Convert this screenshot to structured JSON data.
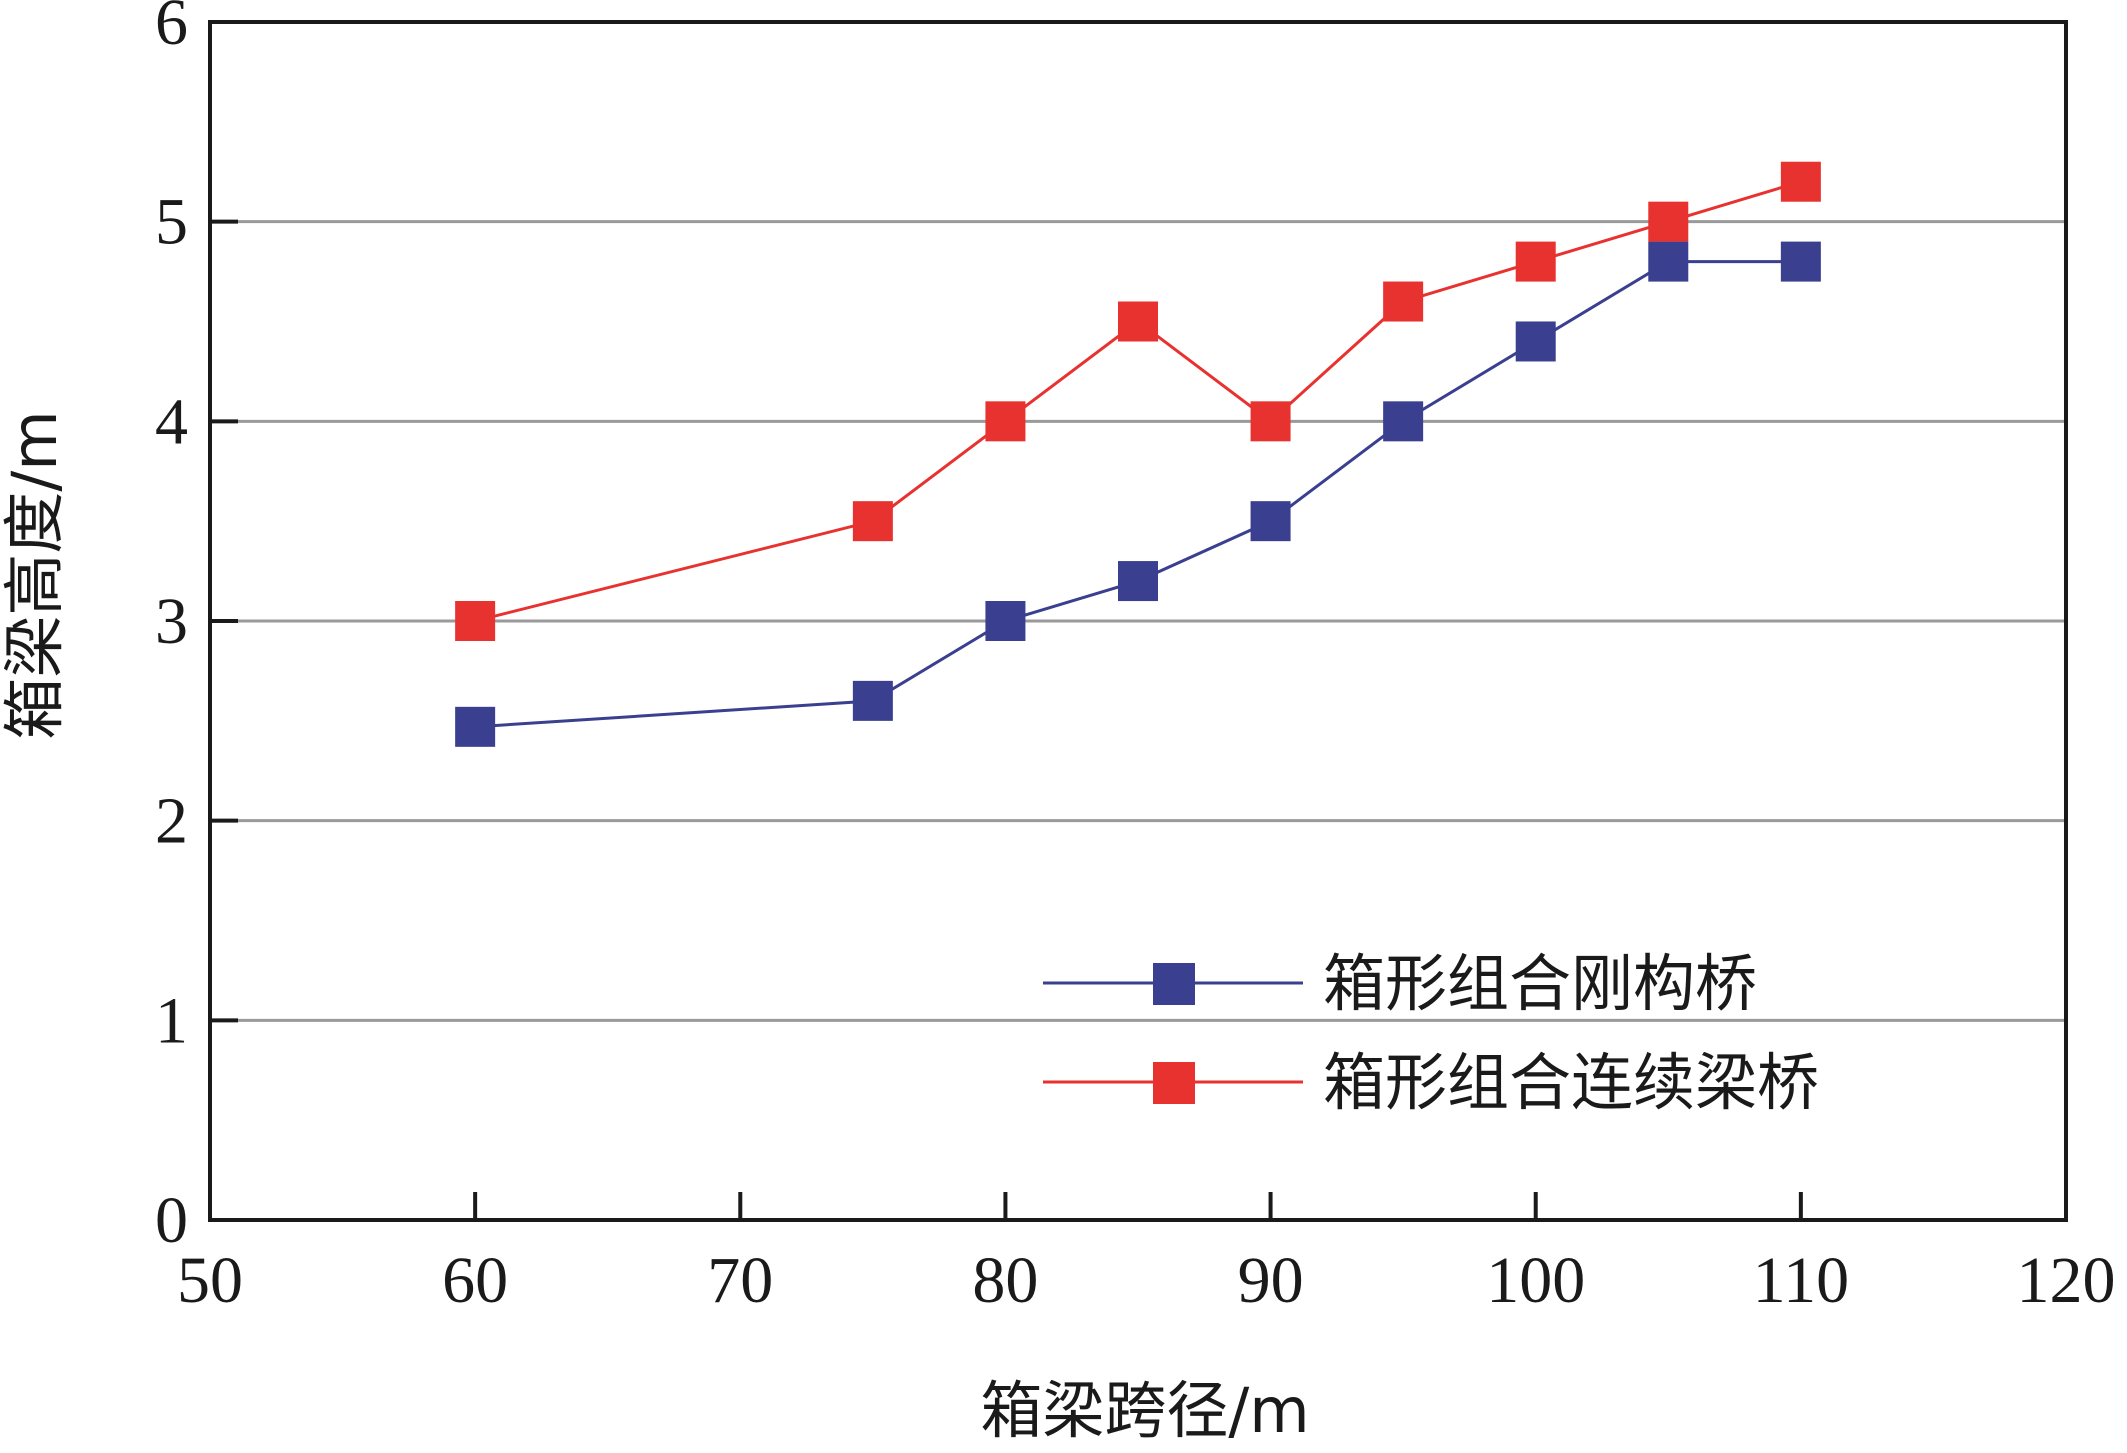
{
  "chart_data": {
    "type": "line",
    "title": "",
    "xlabel": "箱梁跨径/m",
    "ylabel": "箱梁高度/m",
    "xlim": [
      50,
      120
    ],
    "ylim": [
      0,
      6
    ],
    "x_ticks": [
      50,
      60,
      70,
      80,
      90,
      100,
      110,
      120
    ],
    "y_ticks": [
      0,
      1,
      2,
      3,
      4,
      5,
      6
    ],
    "grid": "horizontal",
    "legend_position": "bottom-right",
    "series": [
      {
        "name": "箱形组合刚构桥",
        "color": "#3a3f8f",
        "marker": "square",
        "x": [
          60,
          75,
          80,
          85,
          90,
          95,
          100,
          105,
          110
        ],
        "values": [
          2.47,
          2.6,
          3.0,
          3.2,
          3.5,
          4.0,
          4.4,
          4.8,
          4.8
        ]
      },
      {
        "name": "箱形组合连续梁桥",
        "color": "#e8322f",
        "marker": "square",
        "x": [
          60,
          75,
          80,
          85,
          90,
          95,
          100,
          105,
          110
        ],
        "values": [
          3.0,
          3.5,
          4.0,
          4.5,
          4.0,
          4.6,
          4.8,
          5.0,
          5.2
        ]
      }
    ]
  }
}
